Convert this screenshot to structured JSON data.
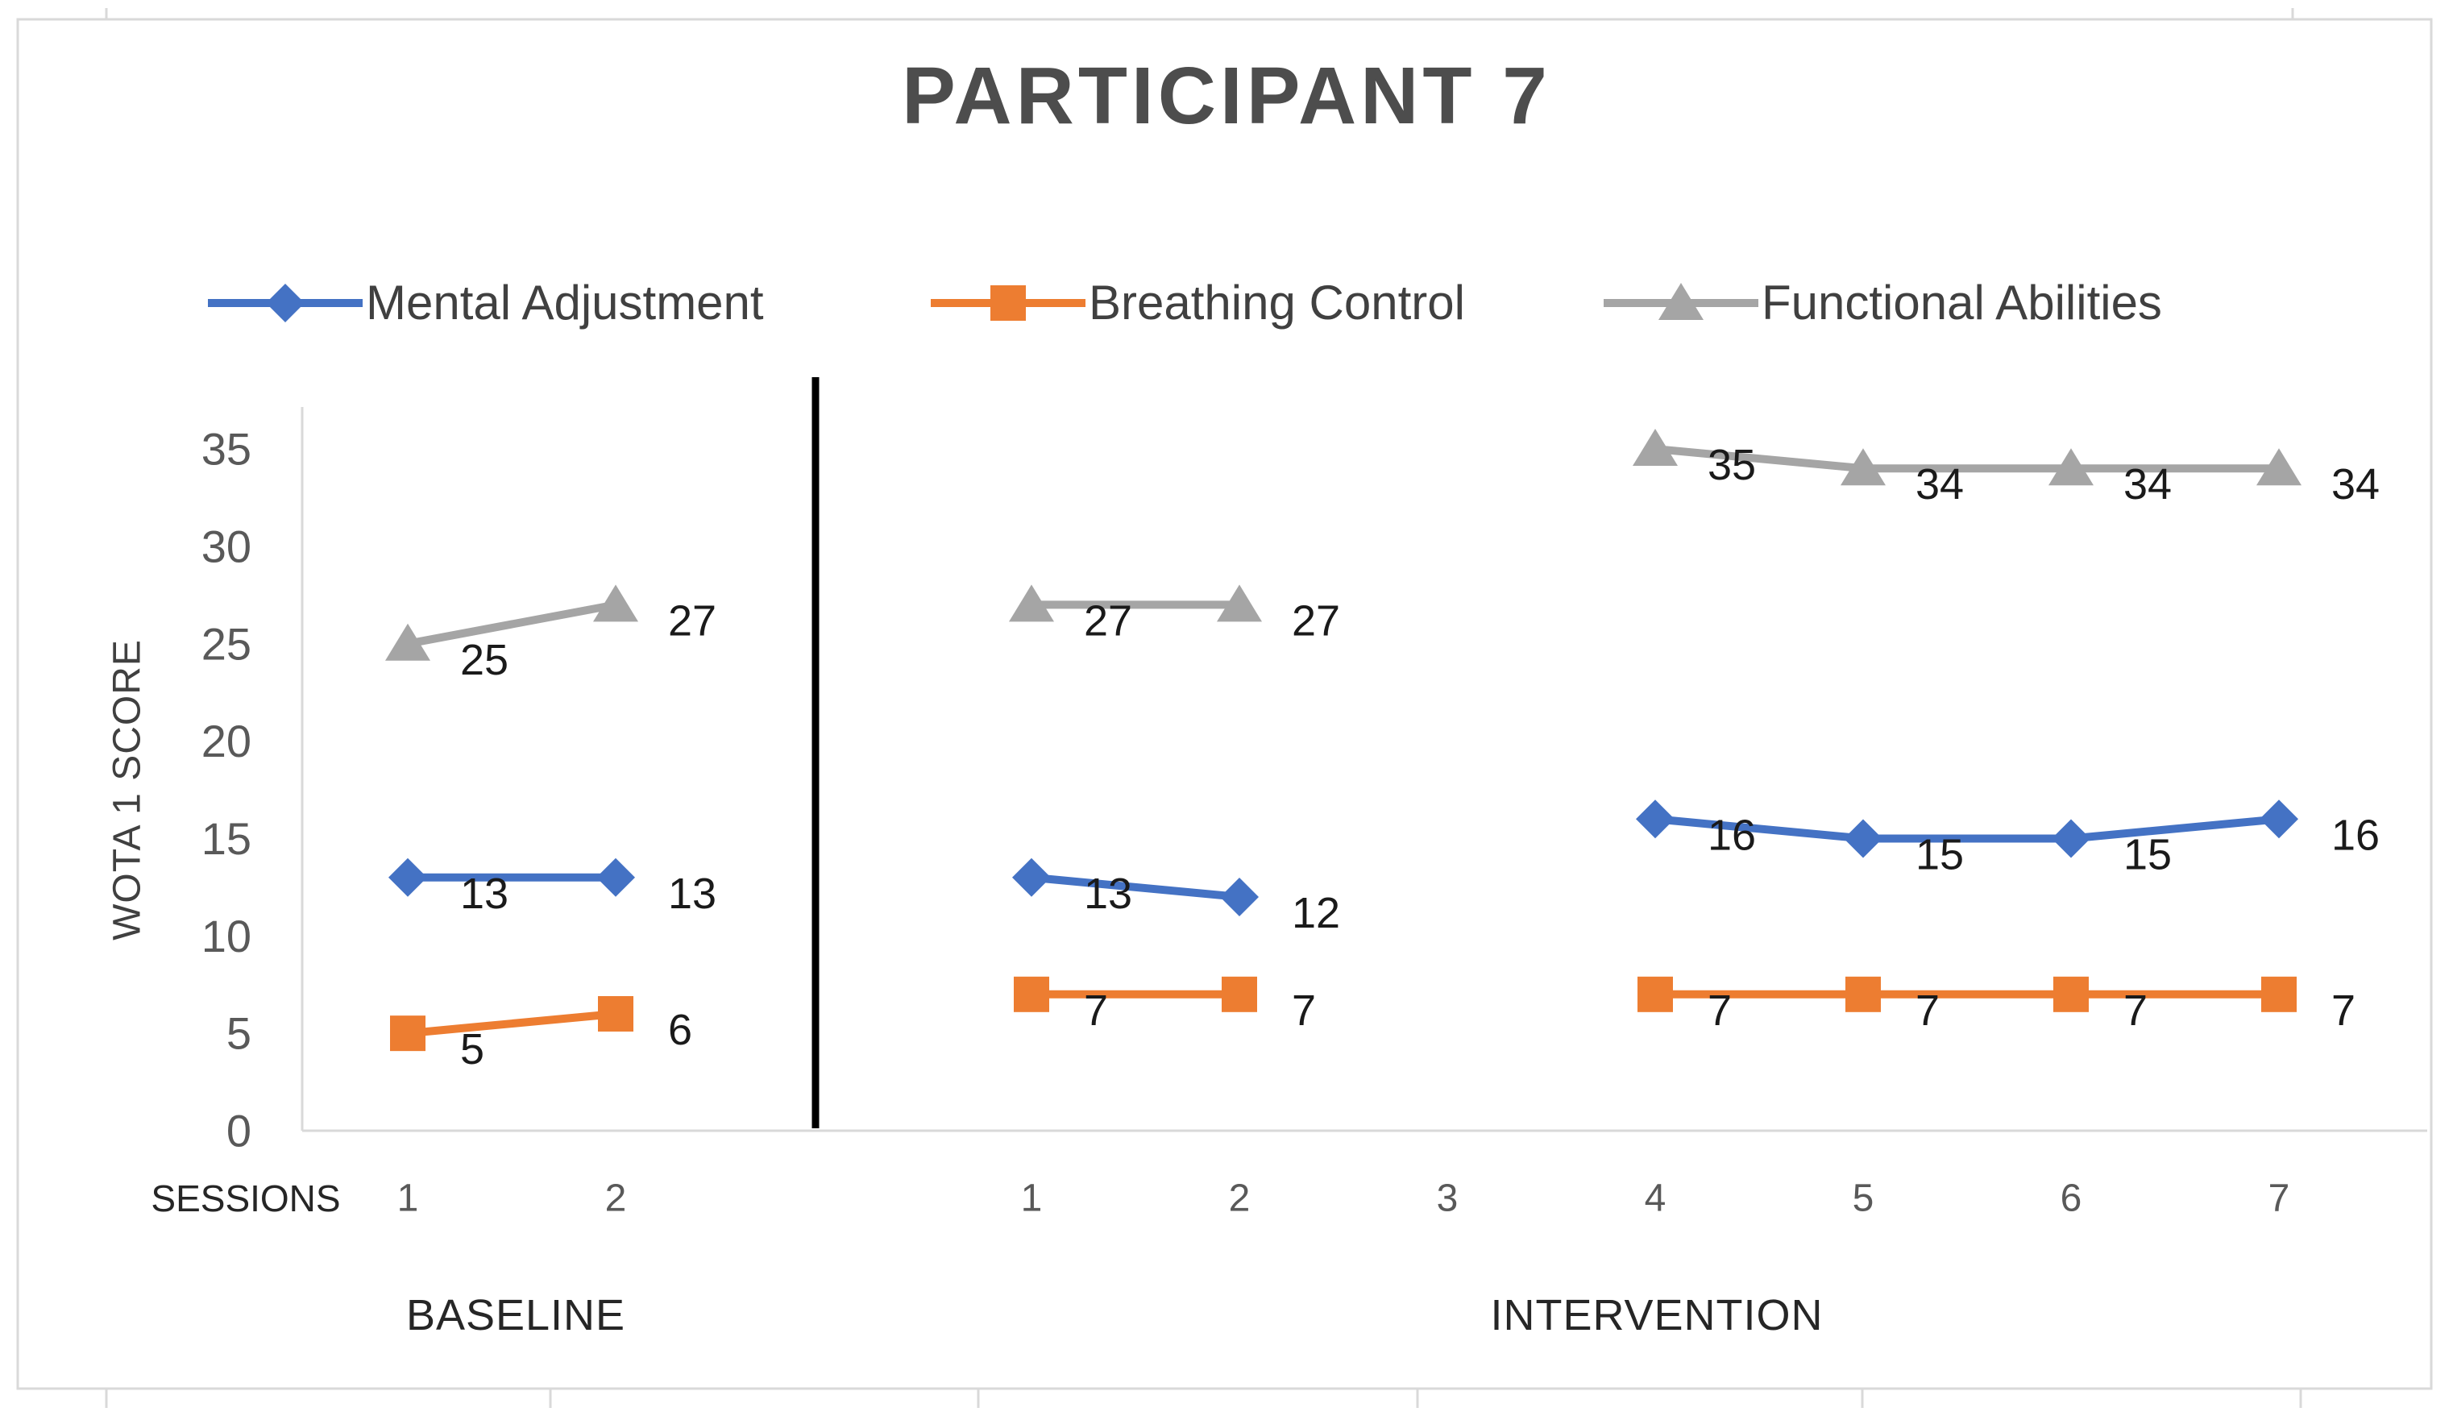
{
  "chart_data": {
    "type": "line",
    "title": "PARTICIPANT 7",
    "xlabel": "SESSIONS",
    "ylabel": "WOTA 1 SCORE",
    "ylim": [
      0,
      35
    ],
    "yticks": [
      0,
      5,
      10,
      15,
      20,
      25,
      30,
      35
    ],
    "grid": false,
    "legend_position": "top",
    "data_labels": true,
    "phase_labels": [
      "BASELINE",
      "INTERVENTION"
    ],
    "phase_divider_after_baseline": true,
    "baseline_session_ticks": [
      "1",
      "2"
    ],
    "intervention_session_ticks": [
      "1",
      "2",
      "3",
      "4",
      "5",
      "6",
      "7"
    ],
    "series": [
      {
        "name": "Mental Adjustment",
        "marker": "diamond",
        "color": "#4472C4",
        "baseline": [
          13,
          13
        ],
        "intervention": [
          13,
          12,
          null,
          16,
          15,
          15,
          16
        ]
      },
      {
        "name": "Breathing Control",
        "marker": "square",
        "color": "#ED7D31",
        "baseline": [
          5,
          6
        ],
        "intervention": [
          7,
          7,
          null,
          7,
          7,
          7,
          7
        ]
      },
      {
        "name": "Functional Abilities",
        "marker": "triangle",
        "color": "#A5A5A5",
        "baseline": [
          25,
          27
        ],
        "intervention": [
          27,
          27,
          null,
          35,
          34,
          34,
          34
        ]
      }
    ],
    "colors": {
      "axis_line": "#D9D9D9",
      "frame_border": "#D9D9D9",
      "divider": "#000000",
      "title_text": "#4D4D4D",
      "tick_text": "#595959",
      "legend_text": "#404040",
      "data_label_text": "#1A1A1A",
      "phase_text": "#262626"
    }
  }
}
